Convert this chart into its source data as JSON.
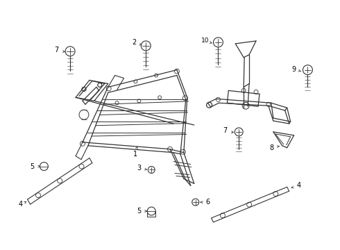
{
  "background_color": "#ffffff",
  "line_color": "#333333",
  "label_color": "#000000",
  "fig_width": 4.9,
  "fig_height": 3.6,
  "dpi": 100
}
